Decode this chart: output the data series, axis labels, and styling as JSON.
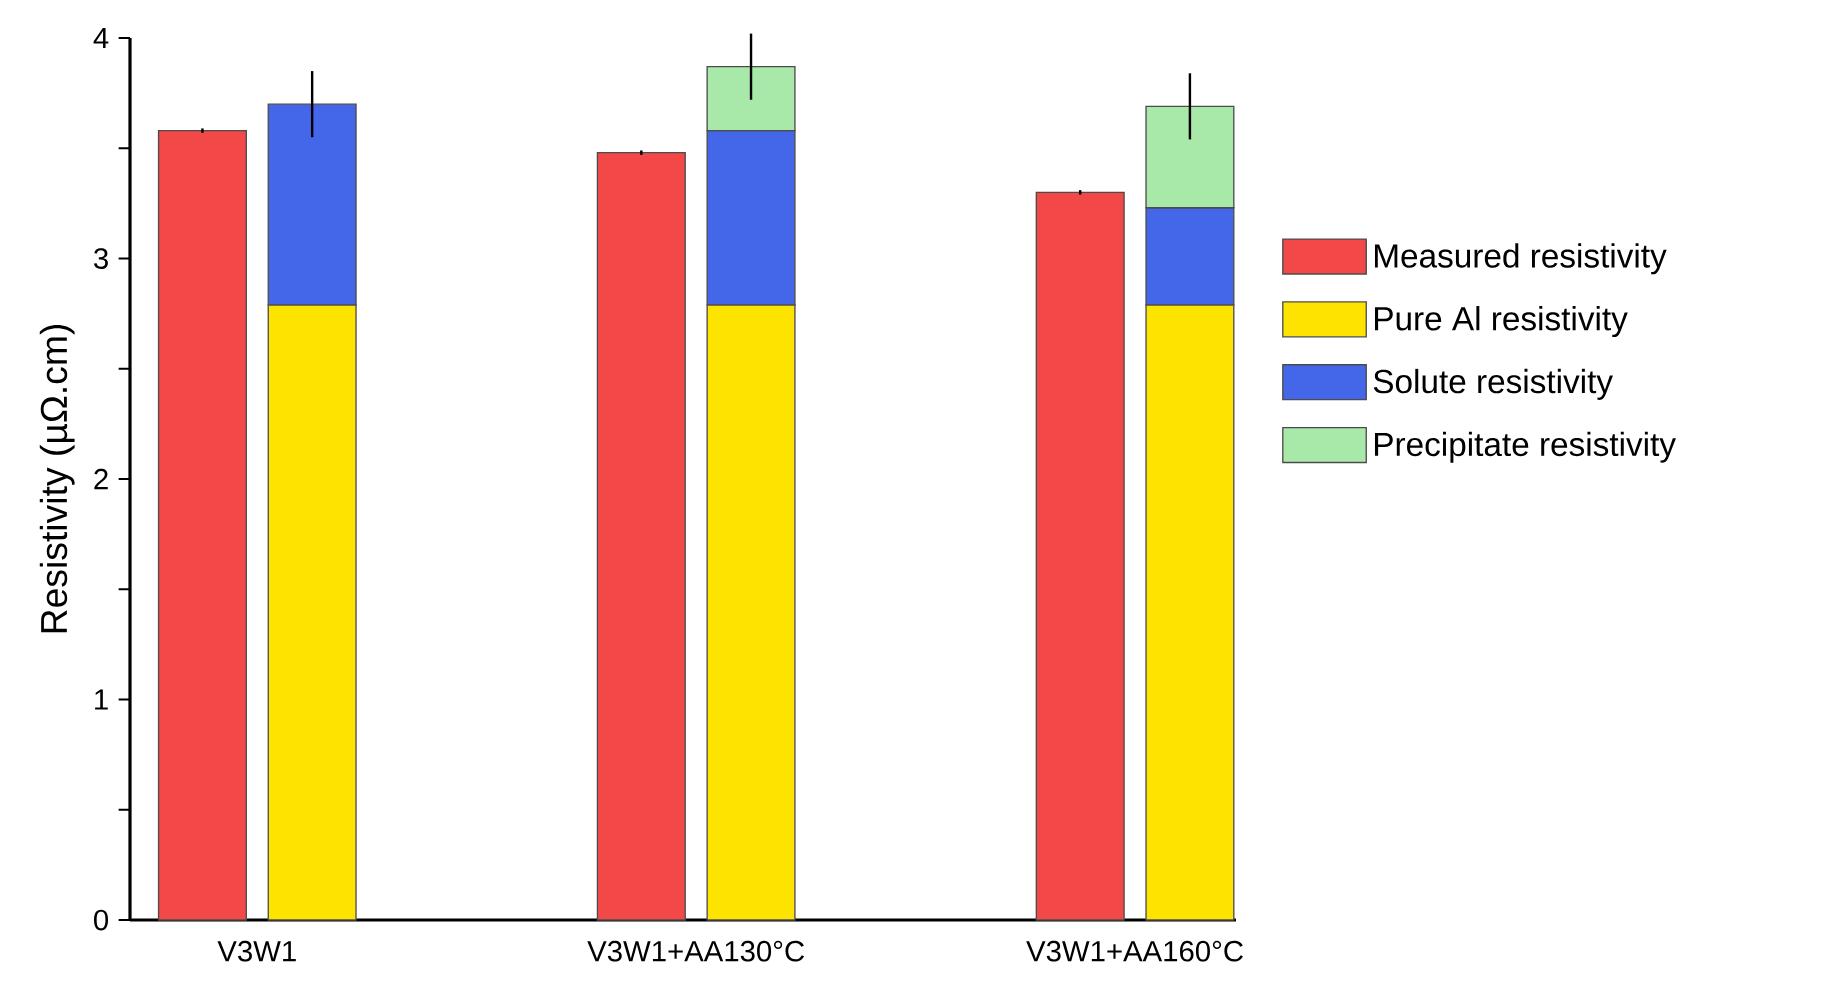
{
  "chart_data": {
    "type": "bar",
    "ylabel": "Resistivity (µΩ.cm)",
    "categories": [
      "V3W1",
      "V3W1+AA130°C",
      "V3W1+AA160°C"
    ],
    "ylim": [
      0,
      4
    ],
    "yticks": [
      0,
      {
        "value": 0.5,
        "label": null
      },
      1,
      {
        "value": 1.5,
        "label": null
      },
      2,
      {
        "value": 2.5,
        "label": null
      },
      3,
      {
        "value": 3.5,
        "label": null
      },
      4
    ],
    "legend": "right",
    "series": [
      {
        "name": "Measured resistivity",
        "color": "#f24848",
        "values": [
          3.58,
          3.48,
          3.3
        ],
        "errors": [
          0.01,
          0.01,
          0.01
        ]
      },
      {
        "name": "Pure Al resistivity",
        "color": "#fde400",
        "values": [
          2.79,
          2.79,
          2.79
        ],
        "base": [
          0,
          0,
          0
        ]
      },
      {
        "name": "Solute resistivity",
        "color": "#4466e8",
        "values": [
          0.91,
          0.79,
          0.44
        ],
        "base": [
          2.79,
          2.79,
          2.79
        ],
        "errors": [
          0.15,
          null,
          null
        ]
      },
      {
        "name": "Precipitate resistivity",
        "color": "#a8e8a8",
        "values": [
          null,
          0.29,
          0.46
        ],
        "base": [
          null,
          3.58,
          3.23
        ],
        "errors": [
          null,
          0.15,
          0.15
        ]
      }
    ]
  }
}
